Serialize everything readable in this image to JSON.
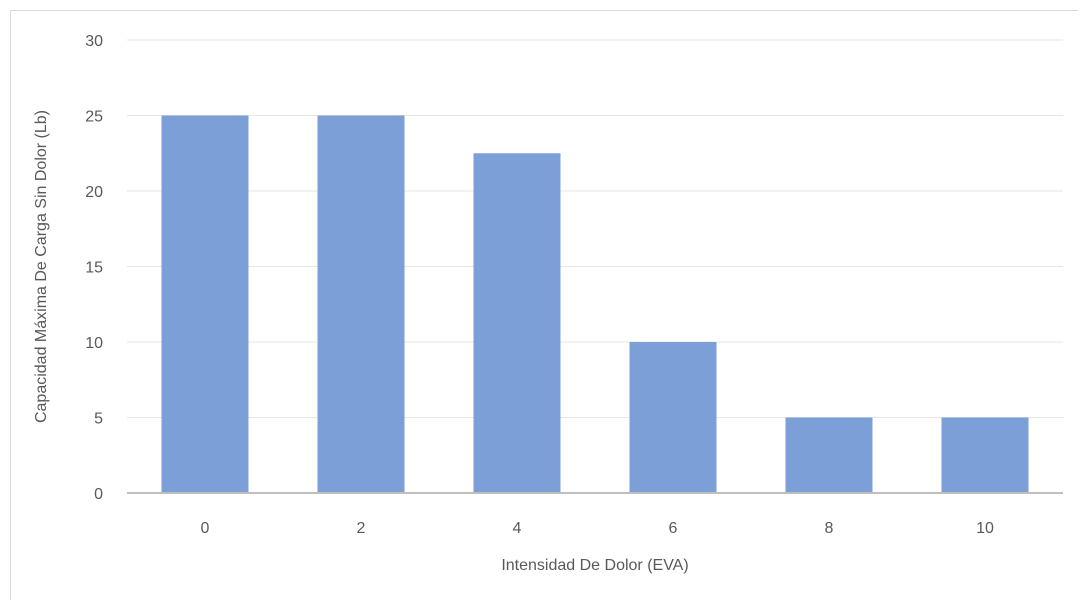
{
  "chart_data": {
    "type": "bar",
    "categories": [
      "0",
      "2",
      "4",
      "6",
      "8",
      "10"
    ],
    "values": [
      25,
      25,
      22.5,
      10,
      5,
      5
    ],
    "title": "",
    "xlabel": "Intensidad De Dolor (EVA)",
    "ylabel": "Capacidad  Máxima De Carga Sin Dolor  (Lb)",
    "ylim": [
      0,
      30
    ],
    "yticks": [
      0,
      5,
      10,
      15,
      20,
      25,
      30
    ],
    "grid": true,
    "legend": "none",
    "bar_color": "#7b9fd6",
    "grid_color": "#e6e6e6",
    "axis_color": "#bfbfbf"
  }
}
